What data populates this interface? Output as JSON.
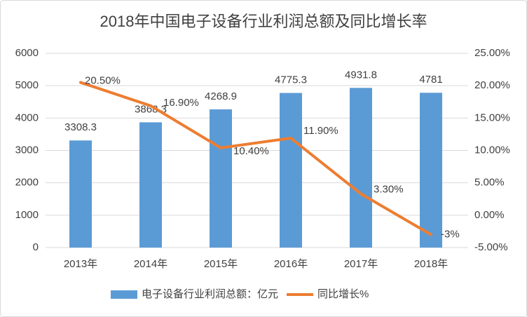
{
  "chart_data": {
    "type": "bar",
    "title": "2018年中国电子设备行业利润总额及同比增长率",
    "categories": [
      "2013年",
      "2014年",
      "2015年",
      "2016年",
      "2017年",
      "2018年"
    ],
    "series": [
      {
        "name": "电子设备行业利润总额：亿元",
        "type": "bar",
        "color": "#5b9bd5",
        "values": [
          3308.3,
          3868.3,
          4268.9,
          4775.3,
          4931.8,
          4781
        ]
      },
      {
        "name": "同比增长%",
        "type": "line",
        "axis": "y2",
        "color": "#ed7d31",
        "values": [
          20.5,
          16.9,
          10.4,
          11.9,
          3.3,
          -3
        ],
        "value_labels": [
          "20.50%",
          "16.90%",
          "10.40%",
          "11.90%",
          "3.30%",
          "-3%"
        ]
      }
    ],
    "ylim": [
      0,
      6000
    ],
    "yticks": [
      0,
      1000,
      2000,
      3000,
      4000,
      5000,
      6000
    ],
    "y2lim": [
      -5,
      25
    ],
    "y2ticks": [
      {
        "value": -5,
        "label": "-5.00%"
      },
      {
        "value": 0,
        "label": "0.00%"
      },
      {
        "value": 5,
        "label": "5.00%"
      },
      {
        "value": 10,
        "label": "10.00%"
      },
      {
        "value": 15,
        "label": "15.00%"
      },
      {
        "value": 20,
        "label": "20.00%"
      },
      {
        "value": 25,
        "label": "25.00%"
      }
    ],
    "grid": true,
    "legend": "bottom"
  }
}
